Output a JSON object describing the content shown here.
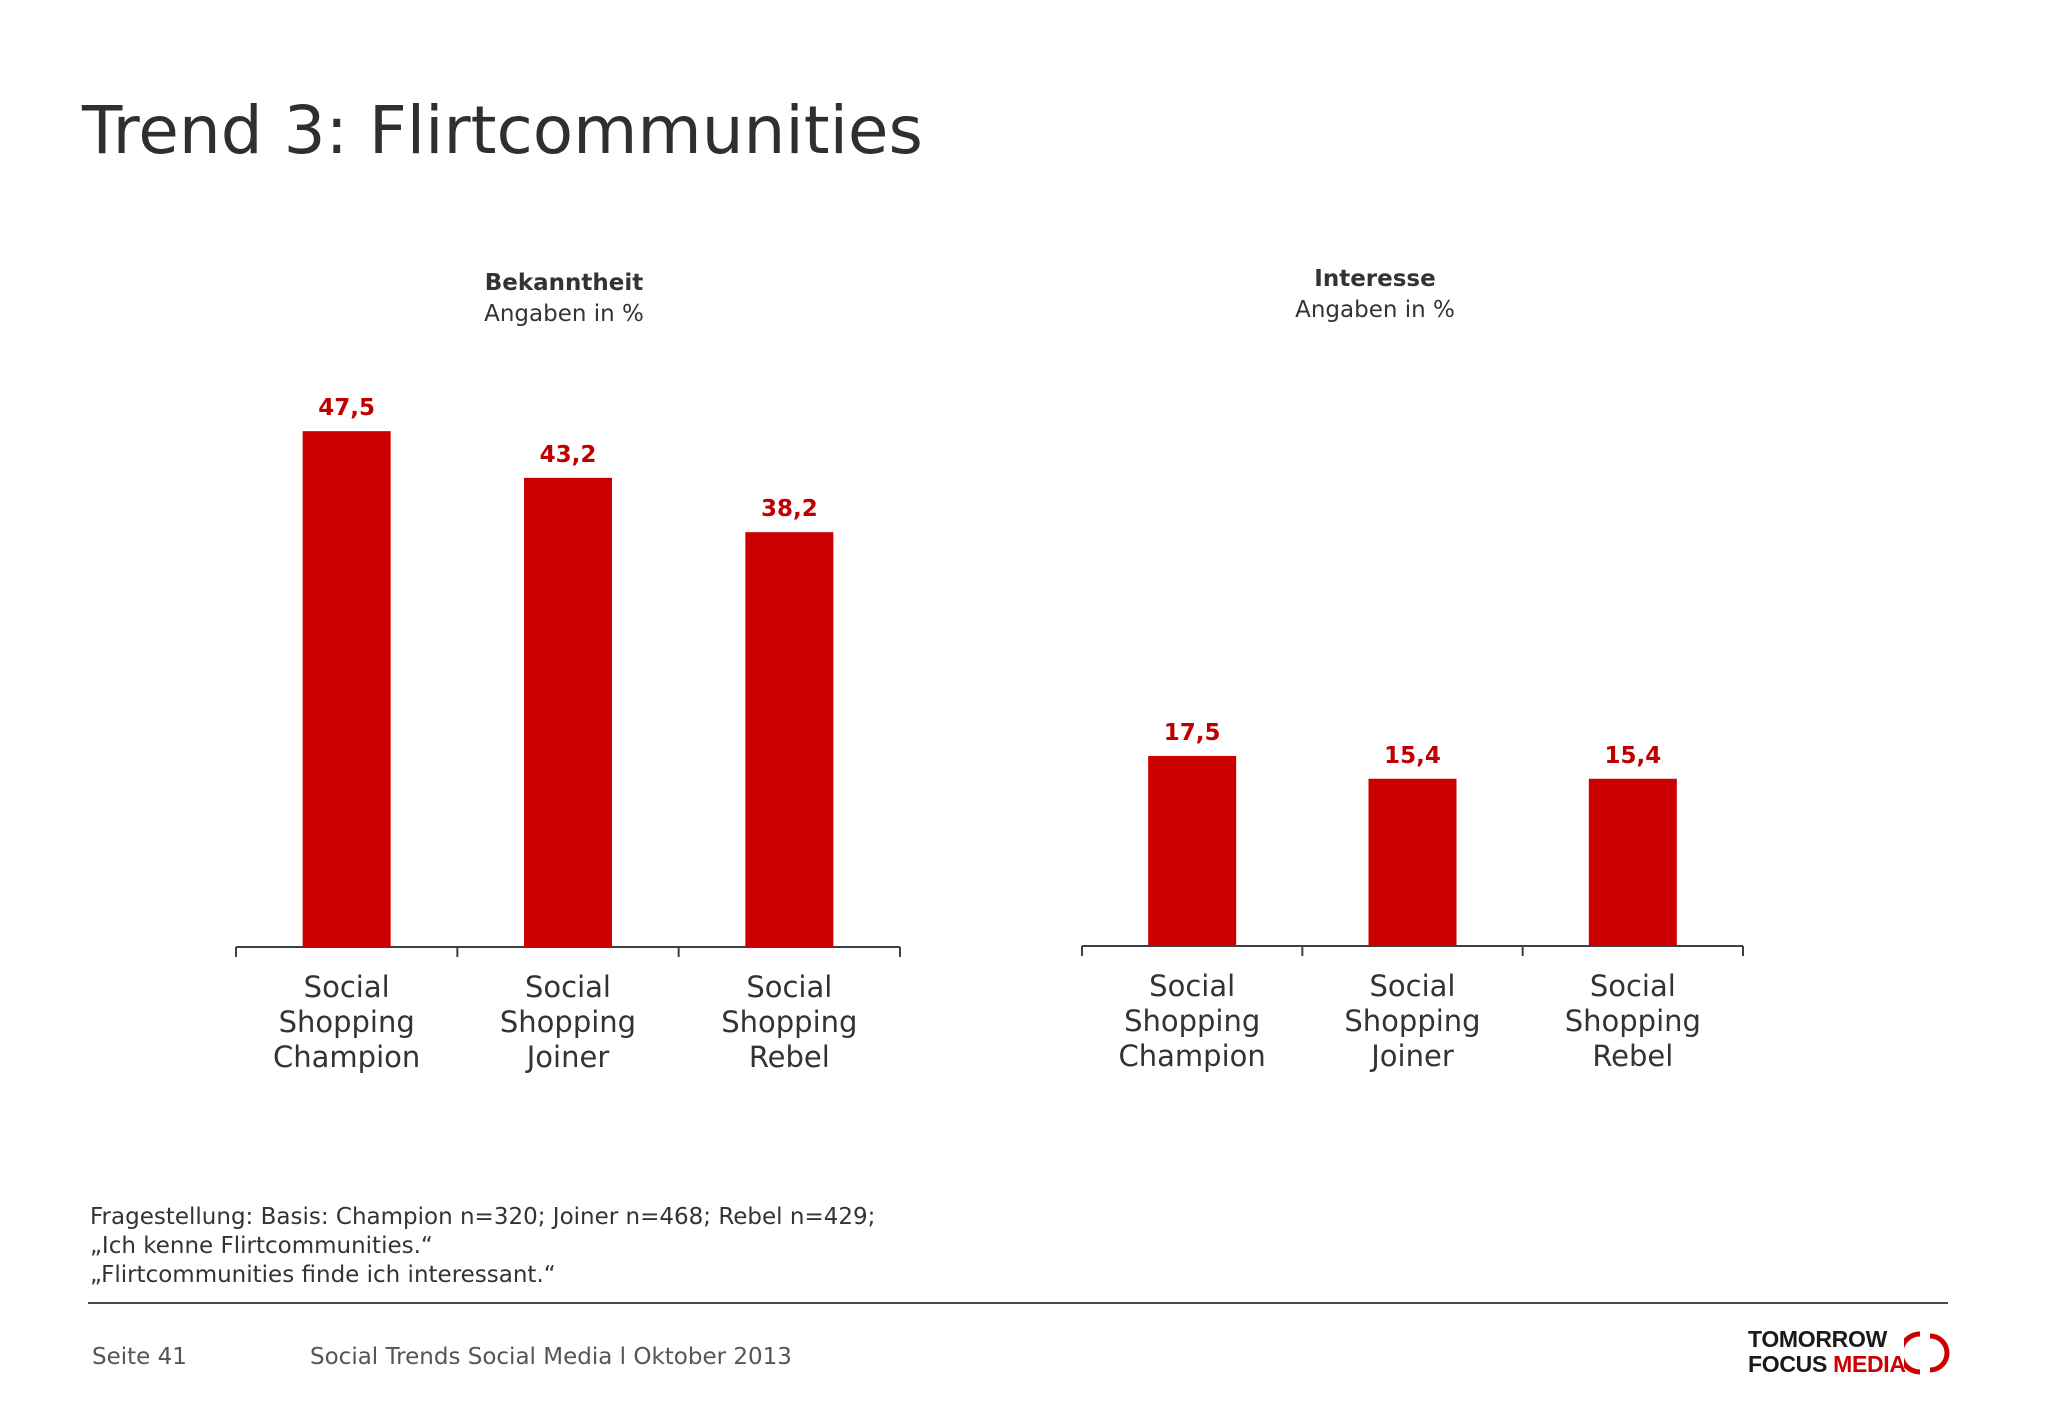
{
  "page": {
    "title": "Trend 3: Flirtcommunities"
  },
  "colors": {
    "bar": "#cc0000",
    "value_label": "#c00000",
    "axis": "#404040",
    "text": "#333333"
  },
  "chart_data": [
    {
      "type": "bar",
      "title": "Bekanntheit",
      "subtitle": "Angaben in %",
      "categories": [
        [
          "Social",
          "Shopping",
          "Champion"
        ],
        [
          "Social",
          "Shopping",
          "Joiner"
        ],
        [
          "Social",
          "Shopping",
          "Rebel"
        ]
      ],
      "values": [
        47.5,
        43.2,
        38.2
      ],
      "value_labels": [
        "47,5",
        "43,2",
        "38,2"
      ],
      "ylim": [
        0,
        50
      ],
      "grid": false,
      "legend": "none"
    },
    {
      "type": "bar",
      "title": "Interesse",
      "subtitle": "Angaben in %",
      "categories": [
        [
          "Social",
          "Shopping",
          "Champion"
        ],
        [
          "Social",
          "Shopping",
          "Joiner"
        ],
        [
          "Social",
          "Shopping",
          "Rebel"
        ]
      ],
      "values": [
        17.5,
        15.4,
        15.4
      ],
      "value_labels": [
        "17,5",
        "15,4",
        "15,4"
      ],
      "ylim": [
        0,
        50
      ],
      "grid": false,
      "legend": "none"
    }
  ],
  "footnote": {
    "line1": "Fragestellung:  Basis: Champion n=320; Joiner n=468; Rebel n=429;",
    "line2": "„Ich kenne Flirtcommunities.“",
    "line3": "„Flirtcommunities finde ich interessant.“"
  },
  "footer": {
    "page_number": "Seite 41",
    "source": "Social Trends Social Media l Oktober 2013",
    "logo_line1": "TOMORROW",
    "logo_line2_a": "FOCUS ",
    "logo_line2_b": "MEDIA"
  }
}
